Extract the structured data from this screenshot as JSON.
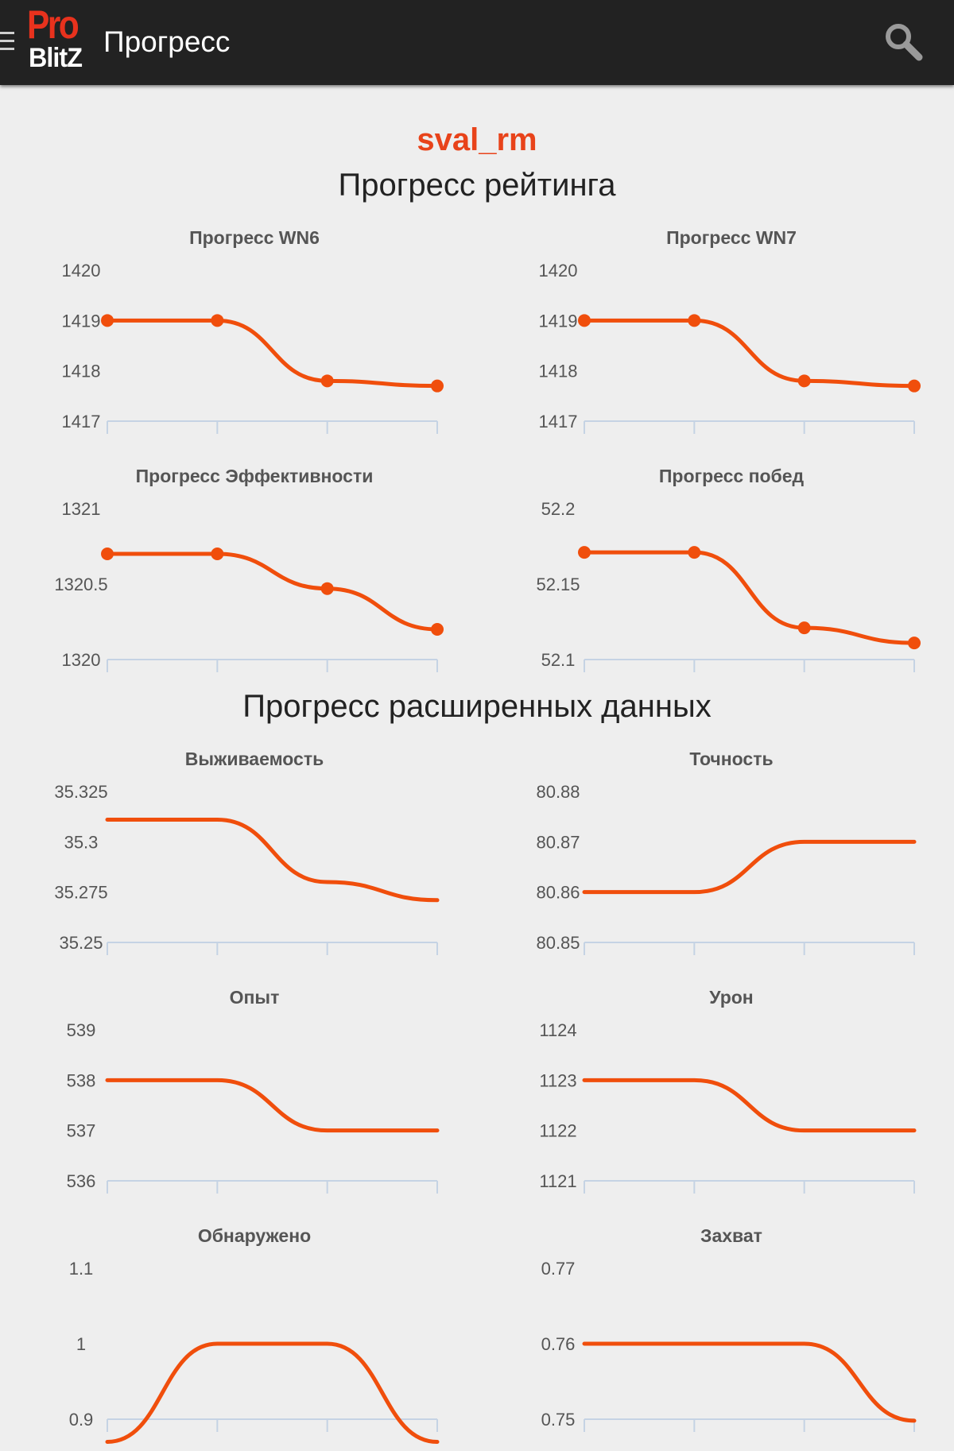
{
  "header": {
    "logo_top": "Pro",
    "logo_bottom": "BlitZ",
    "title": "Прогресс",
    "icons": {
      "menu": "menu-icon",
      "search": "search-icon"
    }
  },
  "player": {
    "name": "sval_rm"
  },
  "sections": {
    "rating": "Прогресс рейтинга",
    "extended": "Прогресс расширенных данных"
  },
  "colors": {
    "accent": "#e8431a",
    "line": "#f04e0c",
    "axis": "#c5d3e4",
    "header_bg": "#222222"
  },
  "chart_data": [
    {
      "type": "line",
      "title": "Прогресс WN6",
      "markers": true,
      "ylim": [
        1417,
        1420
      ],
      "y_ticks": [
        "1420",
        "1419",
        "1418",
        "1417"
      ],
      "values": [
        1419,
        1419,
        1417.8,
        1417.7
      ]
    },
    {
      "type": "line",
      "title": "Прогресс WN7",
      "markers": true,
      "ylim": [
        1417,
        1420
      ],
      "y_ticks": [
        "1420",
        "1419",
        "1418",
        "1417"
      ],
      "values": [
        1419,
        1419,
        1417.8,
        1417.7
      ]
    },
    {
      "type": "line",
      "title": "Прогресс Эффективности",
      "markers": true,
      "ylim": [
        1320,
        1321
      ],
      "y_ticks": [
        "1321",
        "1320.5",
        "1320"
      ],
      "values": [
        1320.7,
        1320.7,
        1320.47,
        1320.2
      ]
    },
    {
      "type": "line",
      "title": "Прогресс побед",
      "markers": true,
      "ylim": [
        52.1,
        52.2
      ],
      "y_ticks": [
        "52.2",
        "52.15",
        "52.1"
      ],
      "values": [
        52.171,
        52.171,
        52.121,
        52.111
      ]
    },
    {
      "type": "line",
      "title": "Выживаемость",
      "markers": false,
      "ylim": [
        35.25,
        35.325
      ],
      "y_ticks": [
        "35.325",
        "35.3",
        "35.275",
        "35.25"
      ],
      "values": [
        35.311,
        35.311,
        35.28,
        35.271
      ]
    },
    {
      "type": "line",
      "title": "Точность",
      "markers": false,
      "ylim": [
        80.85,
        80.88
      ],
      "y_ticks": [
        "80.88",
        "80.87",
        "80.86",
        "80.85"
      ],
      "values": [
        80.86,
        80.86,
        80.87,
        80.87
      ]
    },
    {
      "type": "line",
      "title": "Опыт",
      "markers": false,
      "ylim": [
        536,
        539
      ],
      "y_ticks": [
        "539",
        "538",
        "537",
        "536"
      ],
      "values": [
        538,
        538,
        537,
        537
      ]
    },
    {
      "type": "line",
      "title": "Урон",
      "markers": false,
      "ylim": [
        1121,
        1124
      ],
      "y_ticks": [
        "1124",
        "1123",
        "1122",
        "1121"
      ],
      "values": [
        1123,
        1123,
        1122,
        1122
      ]
    },
    {
      "type": "line",
      "title": "Обнаружено",
      "markers": false,
      "ylim": [
        0.9,
        1.1
      ],
      "y_ticks": [
        "1.1",
        "1",
        "0.9"
      ],
      "values": [
        0.87,
        1,
        1,
        0.87
      ]
    },
    {
      "type": "line",
      "title": "Захват",
      "markers": false,
      "ylim": [
        0.75,
        0.77
      ],
      "y_ticks": [
        "0.77",
        "0.76",
        "0.75"
      ],
      "values": [
        0.76,
        0.76,
        0.76,
        0.7498
      ]
    }
  ]
}
